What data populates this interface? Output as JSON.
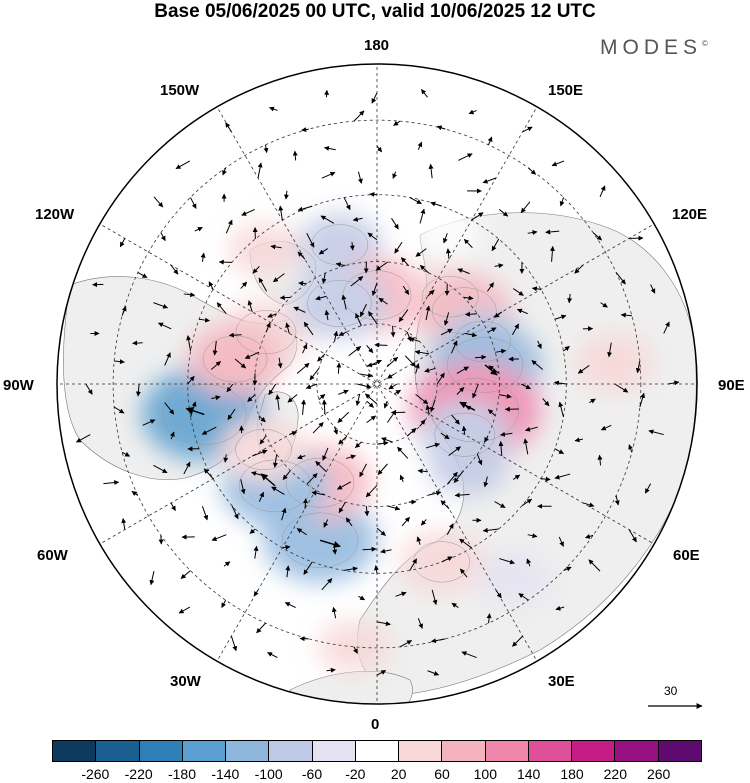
{
  "title": "Base 05/06/2025 00 UTC, valid 10/06/2025 12 UTC",
  "brand": "MODES",
  "brand_mark": "©",
  "longitude_labels": {
    "top": "180",
    "top_left": "150W",
    "top_right": "150E",
    "upper_left": "120W",
    "upper_right": "120E",
    "left": "90W",
    "right": "90E",
    "lower_left": "60W",
    "lower_right": "60E",
    "bottom_left": "30W",
    "bottom_right": "30E",
    "bottom": "0"
  },
  "reference_vector_label": "30",
  "colorbar": {
    "colors": [
      "#0d3b5e",
      "#1a5f8f",
      "#2f7fb8",
      "#5a9fcf",
      "#8fb6dd",
      "#bfc8e4",
      "#e4e2f1",
      "#ffffff",
      "#f8d7d7",
      "#f5b3bd",
      "#ef87ad",
      "#e0509a",
      "#c41d86",
      "#961084",
      "#5f0a70"
    ],
    "tick_labels": [
      "-260",
      "-220",
      "-180",
      "-140",
      "-100",
      "-60",
      "-20",
      "20",
      "60",
      "100",
      "140",
      "180",
      "220",
      "260"
    ]
  },
  "map": {
    "projection": "north-polar-stereographic",
    "land_color": "#f0f0f0",
    "ocean_color": "#ffffff",
    "anomalies": [
      {
        "lon": -80,
        "lat": 48,
        "value": -130
      },
      {
        "lon": -115,
        "lat": 60,
        "value": 70
      },
      {
        "lon": -100,
        "lat": 55,
        "value": 80
      },
      {
        "lon": -140,
        "lat": 48,
        "value": 40
      },
      {
        "lon": -165,
        "lat": 55,
        "value": -60
      },
      {
        "lon": 180,
        "lat": 68,
        "value": 90
      },
      {
        "lon": -155,
        "lat": 68,
        "value": -80
      },
      {
        "lon": 140,
        "lat": 62,
        "value": 60
      },
      {
        "lon": 130,
        "lat": 62,
        "value": 80
      },
      {
        "lon": 155,
        "lat": 50,
        "value": 30
      },
      {
        "lon": 112,
        "lat": 62,
        "value": -60
      },
      {
        "lon": 100,
        "lat": 63,
        "value": -110
      },
      {
        "lon": 75,
        "lat": 65,
        "value": 140
      },
      {
        "lon": 60,
        "lat": 65,
        "value": -70
      },
      {
        "lon": 48,
        "lat": 60,
        "value": -50
      },
      {
        "lon": 95,
        "lat": 35,
        "value": 50
      },
      {
        "lon": 20,
        "lat": 45,
        "value": 60
      },
      {
        "lon": -20,
        "lat": 50,
        "value": -110
      },
      {
        "lon": -30,
        "lat": 62,
        "value": 90
      },
      {
        "lon": -45,
        "lat": 55,
        "value": -100
      },
      {
        "lon": -60,
        "lat": 58,
        "value": 60
      },
      {
        "lon": 35,
        "lat": 35,
        "value": -40
      },
      {
        "lon": -5,
        "lat": 30,
        "value": 40
      }
    ],
    "wind_vectors": [
      {
        "lon": -80,
        "lat": 48,
        "u": -18,
        "v": 6
      },
      {
        "lon": 100,
        "lat": 63,
        "u": 12,
        "v": -10
      },
      {
        "lon": 75,
        "lat": 65,
        "u": -15,
        "v": 8
      },
      {
        "lon": -20,
        "lat": 50,
        "u": 20,
        "v": -6
      },
      {
        "lon": -45,
        "lat": 55,
        "u": -14,
        "v": 12
      }
    ]
  }
}
